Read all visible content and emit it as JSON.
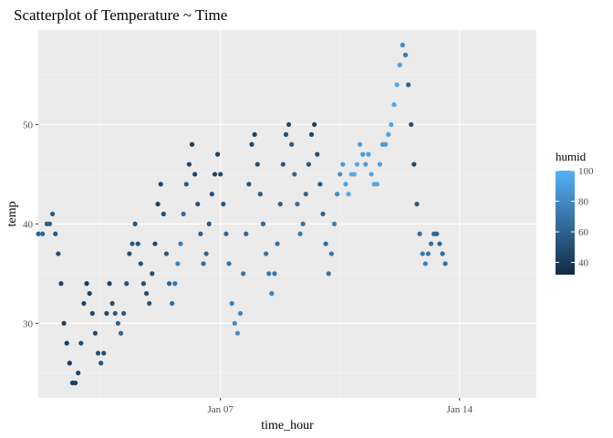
{
  "chart_data": {
    "type": "scatter",
    "title": "Scatterplot of Temperature ~ Time",
    "xlabel": "time_hour",
    "ylabel": "temp",
    "xlim": [
      "2013-01-01T16:00",
      "2013-01-16T06:00"
    ],
    "ylim": [
      22.5,
      59.5
    ],
    "x_ticks": [
      "2013-01-07",
      "2013-01-14"
    ],
    "x_tick_labels": [
      "Jan 07",
      "Jan 14"
    ],
    "y_ticks": [
      30,
      40,
      50
    ],
    "grid": true,
    "legend": {
      "title": "humid",
      "type": "colorbar",
      "range": [
        32,
        100
      ],
      "ticks": [
        40,
        60,
        80,
        100
      ],
      "low_color": "#132b43",
      "high_color": "#56b1f7",
      "placement": "right"
    },
    "series": [
      {
        "points": [
          [
            "2013-01-01T16:00",
            39,
            60
          ],
          [
            "2013-01-01T19:00",
            39,
            62
          ],
          [
            "2013-01-01T22:00",
            40,
            60
          ],
          [
            "2013-01-02T00:00",
            40,
            58
          ],
          [
            "2013-01-02T02:00",
            41,
            57
          ],
          [
            "2013-01-02T04:00",
            39,
            55
          ],
          [
            "2013-01-02T06:00",
            37,
            50
          ],
          [
            "2013-01-02T08:00",
            34,
            45
          ],
          [
            "2013-01-02T10:00",
            30,
            42
          ],
          [
            "2013-01-02T12:00",
            28,
            40
          ],
          [
            "2013-01-02T14:00",
            26,
            38
          ],
          [
            "2013-01-02T16:00",
            24,
            40
          ],
          [
            "2013-01-02T18:00",
            24,
            42
          ],
          [
            "2013-01-02T20:00",
            25,
            45
          ],
          [
            "2013-01-02T22:00",
            28,
            48
          ],
          [
            "2013-01-03T00:00",
            32,
            45
          ],
          [
            "2013-01-03T02:00",
            34,
            40
          ],
          [
            "2013-01-03T04:00",
            33,
            42
          ],
          [
            "2013-01-03T06:00",
            31,
            45
          ],
          [
            "2013-01-03T08:00",
            29,
            48
          ],
          [
            "2013-01-03T10:00",
            27,
            50
          ],
          [
            "2013-01-03T12:00",
            26,
            52
          ],
          [
            "2013-01-03T14:00",
            27,
            50
          ],
          [
            "2013-01-03T16:00",
            31,
            46
          ],
          [
            "2013-01-03T18:00",
            34,
            44
          ],
          [
            "2013-01-03T20:00",
            32,
            50
          ],
          [
            "2013-01-03T22:00",
            31,
            55
          ],
          [
            "2013-01-04T00:00",
            30,
            58
          ],
          [
            "2013-01-04T02:00",
            29,
            60
          ],
          [
            "2013-01-04T04:00",
            31,
            55
          ],
          [
            "2013-01-04T06:00",
            34,
            52
          ],
          [
            "2013-01-04T08:00",
            37,
            50
          ],
          [
            "2013-01-04T10:00",
            38,
            54
          ],
          [
            "2013-01-04T12:00",
            40,
            55
          ],
          [
            "2013-01-04T14:00",
            38,
            52
          ],
          [
            "2013-01-04T16:00",
            36,
            50
          ],
          [
            "2013-01-04T18:00",
            34,
            48
          ],
          [
            "2013-01-04T20:00",
            33,
            50
          ],
          [
            "2013-01-04T22:00",
            32,
            52
          ],
          [
            "2013-01-05T00:00",
            35,
            50
          ],
          [
            "2013-01-05T02:00",
            38,
            47
          ],
          [
            "2013-01-05T04:00",
            42,
            45
          ],
          [
            "2013-01-05T06:00",
            44,
            43
          ],
          [
            "2013-01-05T08:00",
            41,
            48
          ],
          [
            "2013-01-05T10:00",
            37,
            55
          ],
          [
            "2013-01-05T12:00",
            34,
            60
          ],
          [
            "2013-01-05T14:00",
            32,
            65
          ],
          [
            "2013-01-05T16:00",
            34,
            70
          ],
          [
            "2013-01-05T18:00",
            36,
            75
          ],
          [
            "2013-01-05T20:00",
            38,
            72
          ],
          [
            "2013-01-05T22:00",
            41,
            65
          ],
          [
            "2013-01-06T00:00",
            44,
            55
          ],
          [
            "2013-01-06T02:00",
            46,
            45
          ],
          [
            "2013-01-06T04:00",
            48,
            40
          ],
          [
            "2013-01-06T06:00",
            45,
            45
          ],
          [
            "2013-01-06T08:00",
            42,
            52
          ],
          [
            "2013-01-06T10:00",
            39,
            58
          ],
          [
            "2013-01-06T12:00",
            36,
            65
          ],
          [
            "2013-01-06T14:00",
            37,
            62
          ],
          [
            "2013-01-06T16:00",
            40,
            55
          ],
          [
            "2013-01-06T18:00",
            43,
            50
          ],
          [
            "2013-01-06T20:00",
            45,
            45
          ],
          [
            "2013-01-06T22:00",
            47,
            42
          ],
          [
            "2013-01-07T00:00",
            45,
            48
          ],
          [
            "2013-01-07T02:00",
            42,
            55
          ],
          [
            "2013-01-07T04:00",
            39,
            62
          ],
          [
            "2013-01-07T06:00",
            36,
            68
          ],
          [
            "2013-01-07T08:00",
            32,
            75
          ],
          [
            "2013-01-07T10:00",
            30,
            80
          ],
          [
            "2013-01-07T12:00",
            29,
            82
          ],
          [
            "2013-01-07T14:00",
            31,
            78
          ],
          [
            "2013-01-07T16:00",
            35,
            70
          ],
          [
            "2013-01-07T18:00",
            39,
            62
          ],
          [
            "2013-01-07T20:00",
            44,
            52
          ],
          [
            "2013-01-07T22:00",
            48,
            45
          ],
          [
            "2013-01-08T00:00",
            49,
            42
          ],
          [
            "2013-01-08T02:00",
            46,
            48
          ],
          [
            "2013-01-08T04:00",
            43,
            55
          ],
          [
            "2013-01-08T06:00",
            40,
            62
          ],
          [
            "2013-01-08T08:00",
            37,
            68
          ],
          [
            "2013-01-08T10:00",
            35,
            72
          ],
          [
            "2013-01-08T12:00",
            33,
            74
          ],
          [
            "2013-01-08T14:00",
            35,
            70
          ],
          [
            "2013-01-08T16:00",
            38,
            65
          ],
          [
            "2013-01-08T18:00",
            42,
            58
          ],
          [
            "2013-01-08T20:00",
            46,
            52
          ],
          [
            "2013-01-08T22:00",
            49,
            50
          ],
          [
            "2013-01-09T00:00",
            50,
            48
          ],
          [
            "2013-01-09T02:00",
            48,
            55
          ],
          [
            "2013-01-09T04:00",
            45,
            62
          ],
          [
            "2013-01-09T06:00",
            42,
            66
          ],
          [
            "2013-01-09T08:00",
            39,
            70
          ],
          [
            "2013-01-09T10:00",
            40,
            68
          ],
          [
            "2013-01-09T12:00",
            43,
            60
          ],
          [
            "2013-01-09T14:00",
            46,
            52
          ],
          [
            "2013-01-09T16:00",
            49,
            45
          ],
          [
            "2013-01-09T18:00",
            50,
            42
          ],
          [
            "2013-01-09T20:00",
            47,
            48
          ],
          [
            "2013-01-09T22:00",
            44,
            55
          ],
          [
            "2013-01-10T00:00",
            41,
            60
          ],
          [
            "2013-01-10T02:00",
            38,
            64
          ],
          [
            "2013-01-10T04:00",
            35,
            68
          ],
          [
            "2013-01-10T06:00",
            37,
            72
          ],
          [
            "2013-01-10T08:00",
            40,
            76
          ],
          [
            "2013-01-10T10:00",
            43,
            80
          ],
          [
            "2013-01-10T12:00",
            45,
            85
          ],
          [
            "2013-01-10T14:00",
            46,
            88
          ],
          [
            "2013-01-10T16:00",
            44,
            92
          ],
          [
            "2013-01-10T18:00",
            43,
            95
          ],
          [
            "2013-01-10T20:00",
            45,
            97
          ],
          [
            "2013-01-10T22:00",
            45,
            98
          ],
          [
            "2013-01-11T00:00",
            46,
            96
          ],
          [
            "2013-01-11T02:00",
            48,
            90
          ],
          [
            "2013-01-11T04:00",
            47,
            88
          ],
          [
            "2013-01-11T06:00",
            46,
            90
          ],
          [
            "2013-01-11T08:00",
            47,
            92
          ],
          [
            "2013-01-11T10:00",
            45,
            94
          ],
          [
            "2013-01-11T12:00",
            44,
            95
          ],
          [
            "2013-01-11T14:00",
            44,
            93
          ],
          [
            "2013-01-11T16:00",
            46,
            90
          ],
          [
            "2013-01-11T18:00",
            48,
            88
          ],
          [
            "2013-01-11T20:00",
            48,
            90
          ],
          [
            "2013-01-11T22:00",
            49,
            92
          ],
          [
            "2013-01-12T00:00",
            50,
            94
          ],
          [
            "2013-01-12T02:00",
            52,
            95
          ],
          [
            "2013-01-12T04:00",
            54,
            96
          ],
          [
            "2013-01-12T06:00",
            56,
            90
          ],
          [
            "2013-01-12T08:00",
            58,
            80
          ],
          [
            "2013-01-12T10:00",
            57,
            70
          ],
          [
            "2013-01-12T12:00",
            54,
            60
          ],
          [
            "2013-01-12T14:00",
            50,
            50
          ],
          [
            "2013-01-12T16:00",
            46,
            45
          ],
          [
            "2013-01-12T18:00",
            42,
            55
          ],
          [
            "2013-01-12T20:00",
            39,
            65
          ],
          [
            "2013-01-12T22:00",
            37,
            72
          ],
          [
            "2013-01-13T00:00",
            36,
            75
          ],
          [
            "2013-01-13T02:00",
            37,
            70
          ],
          [
            "2013-01-13T04:00",
            38,
            66
          ],
          [
            "2013-01-13T06:00",
            39,
            62
          ],
          [
            "2013-01-13T08:00",
            39,
            60
          ],
          [
            "2013-01-13T10:00",
            38,
            62
          ],
          [
            "2013-01-13T12:00",
            37,
            64
          ],
          [
            "2013-01-13T14:00",
            36,
            66
          ]
        ]
      }
    ]
  }
}
